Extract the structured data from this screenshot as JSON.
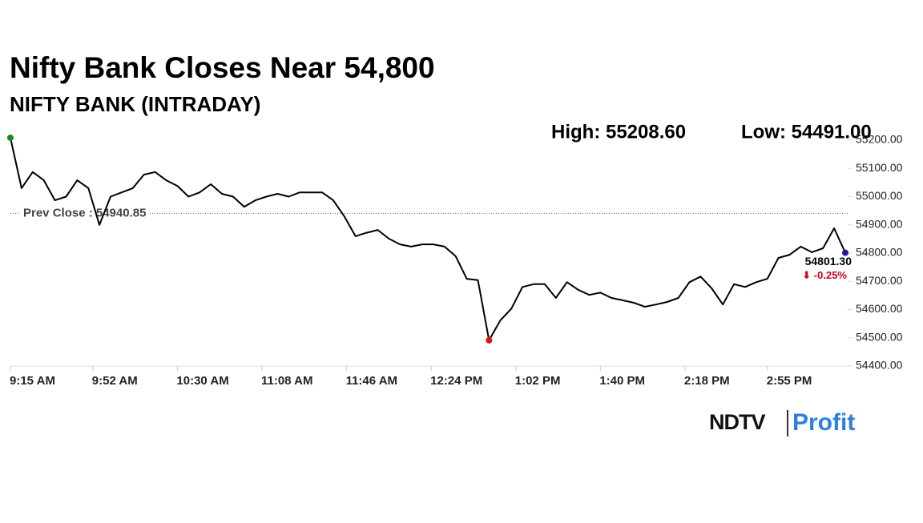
{
  "chart_data": {
    "type": "line",
    "title": "Nifty Bank Closes Near 54,800",
    "subtitle": "NIFTY BANK (INTRADAY)",
    "annotations": [
      "High: 55208.60",
      "Low: 54491.00"
    ],
    "reference_line": {
      "label": "Prev Close : 54940.85",
      "value": 54940.85
    },
    "last_value_label": "54801.30",
    "change_label": "⬇ -0.25%",
    "change_color": "#d0021b",
    "high_marker_color": "#1a8a1a",
    "low_marker_color": "#e01010",
    "last_marker_color": "#1a1aa0",
    "logo": {
      "brand": "NDTV",
      "product": "Profit"
    },
    "x": [
      "9:15 AM",
      "9:20 AM",
      "9:25 AM",
      "9:30 AM",
      "9:35 AM",
      "9:40 AM",
      "9:45 AM",
      "9:50 AM",
      "9:55 AM",
      "10:00 AM",
      "10:05 AM",
      "10:10 AM",
      "10:15 AM",
      "10:20 AM",
      "10:25 AM",
      "10:30 AM",
      "10:35 AM",
      "10:40 AM",
      "10:45 AM",
      "10:50 AM",
      "10:55 AM",
      "11:00 AM",
      "11:05 AM",
      "11:10 AM",
      "11:15 AM",
      "11:20 AM",
      "11:25 AM",
      "11:30 AM",
      "11:35 AM",
      "11:40 AM",
      "11:45 AM",
      "11:50 AM",
      "11:55 AM",
      "12:00 PM",
      "12:05 PM",
      "12:10 PM",
      "12:15 PM",
      "12:20 PM",
      "12:25 PM",
      "12:30 PM",
      "12:35 PM",
      "12:40 PM",
      "12:45 PM",
      "12:50 PM",
      "12:55 PM",
      "1:00 PM",
      "1:05 PM",
      "1:10 PM",
      "1:15 PM",
      "1:20 PM",
      "1:25 PM",
      "1:30 PM",
      "1:35 PM",
      "1:40 PM",
      "1:45 PM",
      "1:50 PM",
      "1:55 PM",
      "2:00 PM",
      "2:05 PM",
      "2:10 PM",
      "2:15 PM",
      "2:20 PM",
      "2:25 PM",
      "2:30 PM",
      "2:35 PM",
      "2:40 PM",
      "2:45 PM",
      "2:50 PM",
      "2:55 PM",
      "3:00 PM",
      "3:05 PM",
      "3:10 PM",
      "3:15 PM",
      "3:20 PM",
      "3:25 PM",
      "3:30 PM"
    ],
    "series": [
      {
        "name": "NIFTY BANK",
        "color": "#000000",
        "values": [
          55208.6,
          55030,
          55087,
          55058,
          54987,
          55000,
          55058,
          55030,
          54900,
          55000,
          55015,
          55030,
          55078,
          55087,
          55058,
          55038,
          55000,
          55015,
          55044,
          55010,
          55000,
          54964,
          54987,
          55000,
          55010,
          55000,
          55015,
          55015,
          55015,
          54987,
          54930,
          54860,
          54872,
          54882,
          54851,
          54831,
          54823,
          54831,
          54831,
          54823,
          54789,
          54709,
          54704,
          54491,
          54561,
          54603,
          54680,
          54690,
          54690,
          54641,
          54697,
          54670,
          54652,
          54660,
          54641,
          54633,
          54624,
          54610,
          54618,
          54627,
          54641,
          54697,
          54717,
          54675,
          54618,
          54690,
          54680,
          54697,
          54709,
          54783,
          54794,
          54823,
          54803,
          54817,
          54888,
          54801.3
        ]
      }
    ],
    "xlim": [
      "9:15 AM",
      "3:30 PM"
    ],
    "xticks": [
      "9:15 AM",
      "9:52 AM",
      "10:30 AM",
      "11:08 AM",
      "11:46 AM",
      "12:24 PM",
      "1:02 PM",
      "1:40 PM",
      "2:18 PM",
      "2:55 PM"
    ],
    "ylim": [
      54400,
      55200
    ],
    "yticks": [
      {
        "value": 54400,
        "label": "54400.00"
      },
      {
        "value": 54500,
        "label": "54500.00"
      },
      {
        "value": 54600,
        "label": "54600.00"
      },
      {
        "value": 54700,
        "label": "54700.00"
      },
      {
        "value": 54800,
        "label": "54800.00"
      },
      {
        "value": 54900,
        "label": "54900.00"
      },
      {
        "value": 55000,
        "label": "55000.00"
      },
      {
        "value": 55100,
        "label": "55100.00"
      },
      {
        "value": 55200,
        "label": "55200.00"
      }
    ],
    "grid": false
  }
}
